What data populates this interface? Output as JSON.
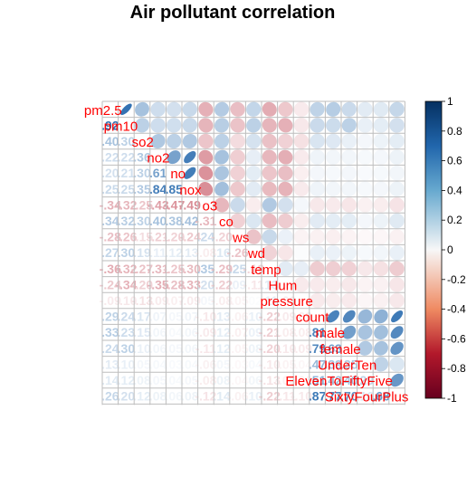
{
  "chart_data": {
    "type": "heatmap",
    "subtype": "mixed correlation matrix (numbers in lower triangle, ellipses in upper triangle)",
    "title": "Air pollutant correlation",
    "variables": [
      "pm2.5",
      "pm10",
      "so2",
      "no2",
      "no",
      "nox",
      "o3",
      "co",
      "ws",
      "wd",
      "temp",
      "Hum",
      "pressure",
      "count",
      "male",
      "female",
      "UnderTen",
      "ElevenToFiftyFive",
      "SixtyFourPlus"
    ],
    "diagonal_labels": [
      "pm2.5",
      "pm10",
      "so2",
      "no2",
      "no",
      "nox",
      "o3",
      "co",
      "ws",
      "wd",
      "temp",
      "Hum",
      "pressure",
      "count",
      "male",
      "female",
      "UnderTen",
      "ElevenToFiftyFive",
      "SixtyFourPlus"
    ],
    "correlation_matrix": [
      [
        1.0,
        0.92,
        0.4,
        0.22,
        0.2,
        0.25,
        -0.34,
        0.34,
        -0.28,
        0.27,
        -0.36,
        -0.24,
        -0.09,
        0.29,
        0.33,
        0.24,
        0.13,
        0.14,
        0.26
      ],
      [
        0.92,
        1.0,
        0.3,
        0.22,
        0.21,
        0.25,
        -0.32,
        0.32,
        -0.26,
        0.3,
        -0.32,
        -0.34,
        -0.1,
        0.24,
        0.23,
        0.3,
        0.1,
        0.12,
        0.2
      ],
      [
        0.4,
        0.3,
        1.0,
        0.36,
        0.3,
        0.35,
        -0.25,
        0.3,
        -0.15,
        0.19,
        -0.27,
        -0.2,
        -0.13,
        0.17,
        0.15,
        0.1,
        0.05,
        0.08,
        0.12
      ],
      [
        0.22,
        0.22,
        0.36,
        1.0,
        0.61,
        0.84,
        -0.43,
        0.4,
        -0.21,
        0.11,
        -0.31,
        -0.35,
        -0.09,
        0.07,
        0.06,
        0.06,
        0.04,
        0.05,
        0.08
      ],
      [
        0.2,
        0.21,
        0.3,
        0.61,
        1.0,
        0.85,
        -0.47,
        0.38,
        -0.2,
        0.12,
        -0.25,
        -0.28,
        -0.07,
        0.05,
        0.04,
        0.05,
        0.03,
        0.04,
        0.06
      ],
      [
        0.25,
        0.25,
        0.35,
        0.84,
        0.85,
        1.0,
        -0.49,
        0.42,
        -0.24,
        0.13,
        -0.3,
        -0.33,
        -0.09,
        0.07,
        0.06,
        0.06,
        0.04,
        0.05,
        0.08
      ],
      [
        -0.34,
        -0.32,
        -0.25,
        -0.43,
        -0.47,
        -0.49,
        1.0,
        -0.31,
        0.24,
        -0.08,
        0.35,
        0.2,
        0.05,
        -0.1,
        -0.09,
        -0.11,
        -0.06,
        -0.08,
        -0.12
      ],
      [
        0.34,
        0.32,
        0.3,
        0.4,
        0.38,
        0.42,
        -0.31,
        1.0,
        -0.2,
        0.16,
        -0.29,
        -0.22,
        -0.08,
        0.13,
        0.12,
        0.12,
        0.05,
        0.08,
        0.14
      ],
      [
        -0.28,
        -0.26,
        -0.15,
        -0.21,
        -0.2,
        -0.24,
        0.24,
        -0.2,
        1.0,
        -0.26,
        0.25,
        0.09,
        -0.05,
        -0.06,
        -0.07,
        -0.05,
        -0.03,
        -0.04,
        -0.06
      ],
      [
        0.27,
        0.3,
        0.19,
        0.11,
        0.12,
        0.13,
        -0.08,
        0.16,
        -0.26,
        1.0,
        -0.19,
        -0.11,
        0.02,
        0.1,
        0.09,
        0.08,
        0.04,
        0.06,
        0.1
      ],
      [
        -0.36,
        -0.32,
        -0.27,
        -0.31,
        -0.25,
        -0.3,
        0.35,
        -0.29,
        0.25,
        -0.19,
        1.0,
        0.13,
        0.11,
        -0.22,
        -0.21,
        -0.2,
        -0.1,
        -0.13,
        -0.22
      ],
      [
        -0.24,
        -0.34,
        -0.2,
        -0.35,
        -0.28,
        -0.33,
        0.2,
        -0.22,
        0.09,
        -0.11,
        0.13,
        1.0,
        -0.09,
        -0.09,
        -0.08,
        -0.1,
        -0.05,
        -0.06,
        -0.11
      ],
      [
        -0.09,
        -0.1,
        -0.13,
        -0.09,
        -0.07,
        -0.09,
        0.05,
        -0.08,
        -0.05,
        0.02,
        0.11,
        -0.09,
        1.0,
        -0.09,
        -0.08,
        -0.09,
        -0.04,
        -0.06,
        -0.1
      ],
      [
        0.29,
        0.24,
        0.17,
        0.07,
        0.05,
        0.07,
        -0.1,
        0.13,
        -0.06,
        0.1,
        -0.22,
        -0.09,
        -0.09,
        1.0,
        0.81,
        0.79,
        0.47,
        0.51,
        0.87
      ],
      [
        0.33,
        0.23,
        0.15,
        0.06,
        0.04,
        0.06,
        -0.09,
        0.12,
        -0.07,
        0.09,
        -0.21,
        -0.08,
        -0.08,
        0.81,
        1.0,
        0.63,
        0.39,
        0.42,
        0.77
      ],
      [
        0.24,
        0.3,
        0.1,
        0.06,
        0.05,
        0.06,
        -0.11,
        0.12,
        -0.05,
        0.08,
        -0.2,
        -0.1,
        -0.09,
        0.79,
        0.63,
        1.0,
        0.35,
        0.4,
        0.7
      ],
      [
        0.13,
        0.1,
        0.05,
        0.04,
        0.03,
        0.04,
        -0.06,
        0.05,
        -0.03,
        0.04,
        -0.1,
        -0.05,
        -0.04,
        0.47,
        0.39,
        0.35,
        1.0,
        0.29,
        0.16
      ],
      [
        0.14,
        0.12,
        0.08,
        0.05,
        0.04,
        0.05,
        -0.08,
        0.08,
        -0.04,
        0.06,
        -0.13,
        -0.06,
        -0.06,
        0.51,
        0.42,
        0.4,
        0.29,
        1.0,
        0.68
      ],
      [
        0.26,
        0.2,
        0.12,
        0.08,
        0.06,
        0.08,
        -0.12,
        0.14,
        -0.06,
        0.1,
        -0.22,
        -0.11,
        -0.1,
        0.87,
        0.77,
        0.7,
        0.16,
        0.68,
        1.0
      ]
    ],
    "colorbar": {
      "range": [
        -1,
        1
      ],
      "ticks": [
        1,
        0.8,
        0.6,
        0.4,
        0.2,
        0,
        -0.2,
        -0.4,
        -0.6,
        -0.8,
        -1
      ],
      "tick_labels": [
        "1",
        "0.8",
        "0.6",
        "0.4",
        "0.2",
        "0",
        "-0.2",
        "-0.4",
        "-0.6",
        "-0.8",
        "-1"
      ],
      "negative_color": "#b2182b",
      "neutral_color": "#ffffff",
      "positive_color": "#2166ac"
    },
    "label_color": "#ff0000"
  }
}
